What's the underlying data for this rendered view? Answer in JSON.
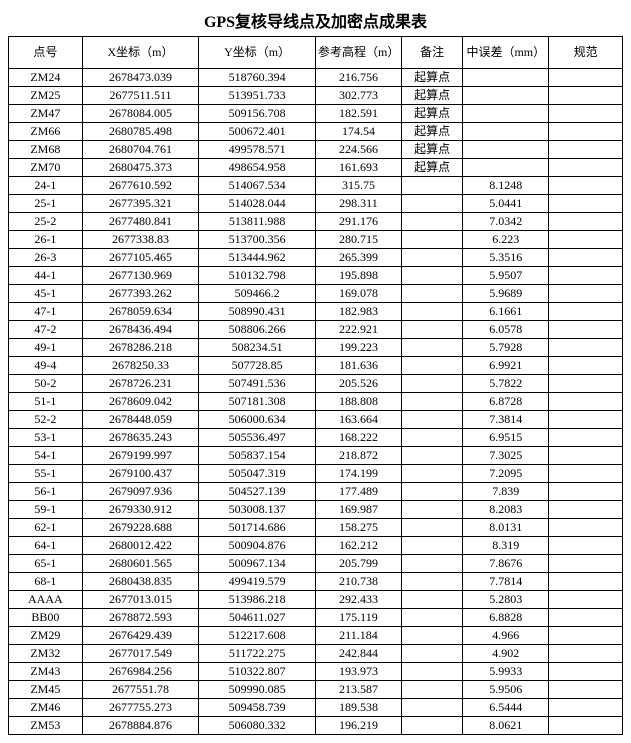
{
  "title": "GPS复核导线点及加密点成果表",
  "columns": [
    "点号",
    "X坐标（m）",
    "Y坐标（m）",
    "参考高程（m）",
    "备注",
    "中误差（mm）",
    "规范"
  ],
  "rows": [
    [
      "ZM24",
      "2678473.039",
      "518760.394",
      "216.756",
      "起算点",
      "",
      ""
    ],
    [
      "ZM25",
      "2677511.511",
      "513951.733",
      "302.773",
      "起算点",
      "",
      ""
    ],
    [
      "ZM47",
      "2678084.005",
      "509156.708",
      "182.591",
      "起算点",
      "",
      ""
    ],
    [
      "ZM66",
      "2680785.498",
      "500672.401",
      "174.54",
      "起算点",
      "",
      ""
    ],
    [
      "ZM68",
      "2680704.761",
      "499578.571",
      "224.566",
      "起算点",
      "",
      ""
    ],
    [
      "ZM70",
      "2680475.373",
      "498654.958",
      "161.693",
      "起算点",
      "",
      ""
    ],
    [
      "24-1",
      "2677610.592",
      "514067.534",
      "315.75",
      "",
      "8.1248",
      ""
    ],
    [
      "25-1",
      "2677395.321",
      "514028.044",
      "298.311",
      "",
      "5.0441",
      ""
    ],
    [
      "25-2",
      "2677480.841",
      "513811.988",
      "291.176",
      "",
      "7.0342",
      ""
    ],
    [
      "26-1",
      "2677338.83",
      "513700.356",
      "280.715",
      "",
      "6.223",
      ""
    ],
    [
      "26-3",
      "2677105.465",
      "513444.962",
      "265.399",
      "",
      "5.3516",
      ""
    ],
    [
      "44-1",
      "2677130.969",
      "510132.798",
      "195.898",
      "",
      "5.9507",
      ""
    ],
    [
      "45-1",
      "2677393.262",
      "509466.2",
      "169.078",
      "",
      "5.9689",
      ""
    ],
    [
      "47-1",
      "2678059.634",
      "508990.431",
      "182.983",
      "",
      "6.1661",
      ""
    ],
    [
      "47-2",
      "2678436.494",
      "508806.266",
      "222.921",
      "",
      "6.0578",
      ""
    ],
    [
      "49-1",
      "2678286.218",
      "508234.51",
      "199.223",
      "",
      "5.7928",
      ""
    ],
    [
      "49-4",
      "2678250.33",
      "507728.85",
      "181.636",
      "",
      "6.9921",
      ""
    ],
    [
      "50-2",
      "2678726.231",
      "507491.536",
      "205.526",
      "",
      "5.7822",
      ""
    ],
    [
      "51-1",
      "2678609.042",
      "507181.308",
      "188.808",
      "",
      "6.8728",
      ""
    ],
    [
      "52-2",
      "2678448.059",
      "506000.634",
      "163.664",
      "",
      "7.3814",
      ""
    ],
    [
      "53-1",
      "2678635.243",
      "505536.497",
      "168.222",
      "",
      "6.9515",
      ""
    ],
    [
      "54-1",
      "2679199.997",
      "505837.154",
      "218.872",
      "",
      "7.3025",
      ""
    ],
    [
      "55-1",
      "2679100.437",
      "505047.319",
      "174.199",
      "",
      "7.2095",
      ""
    ],
    [
      "56-1",
      "2679097.936",
      "504527.139",
      "177.489",
      "",
      "7.839",
      ""
    ],
    [
      "59-1",
      "2679330.912",
      "503008.137",
      "169.987",
      "",
      "8.2083",
      ""
    ],
    [
      "62-1",
      "2679228.688",
      "501714.686",
      "158.275",
      "",
      "8.0131",
      ""
    ],
    [
      "64-1",
      "2680012.422",
      "500904.876",
      "162.212",
      "",
      "8.319",
      ""
    ],
    [
      "65-1",
      "2680601.565",
      "500967.134",
      "205.799",
      "",
      "7.8676",
      ""
    ],
    [
      "68-1",
      "2680438.835",
      "499419.579",
      "210.738",
      "",
      "7.7814",
      ""
    ],
    [
      "AAAA",
      "2677013.015",
      "513986.218",
      "292.433",
      "",
      "5.2803",
      ""
    ],
    [
      "BB00",
      "2678872.593",
      "504611.027",
      "175.119",
      "",
      "6.8828",
      ""
    ],
    [
      "ZM29",
      "2676429.439",
      "512217.608",
      "211.184",
      "",
      "4.966",
      ""
    ],
    [
      "ZM32",
      "2677017.549",
      "511722.275",
      "242.844",
      "",
      "4.902",
      ""
    ],
    [
      "ZM43",
      "2676984.256",
      "510322.807",
      "193.973",
      "",
      "5.9933",
      ""
    ],
    [
      "ZM45",
      "2677551.78",
      "509990.085",
      "213.587",
      "",
      "5.9506",
      ""
    ],
    [
      "ZM46",
      "2677755.273",
      "509458.739",
      "189.538",
      "",
      "6.5444",
      ""
    ],
    [
      "ZM53",
      "2678884.876",
      "506080.332",
      "196.219",
      "",
      "8.0621",
      ""
    ]
  ]
}
